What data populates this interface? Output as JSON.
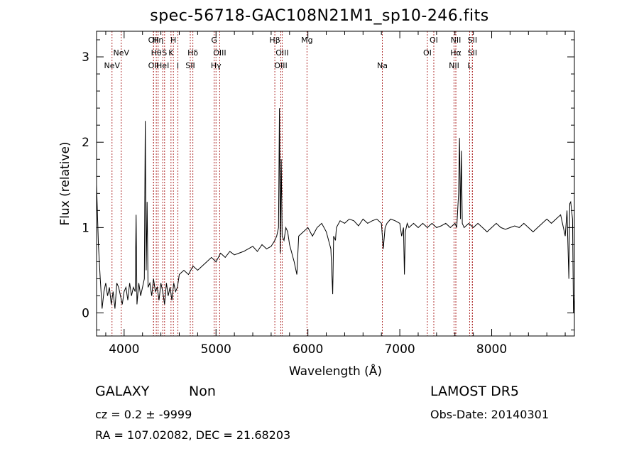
{
  "chart_data": {
    "type": "line",
    "title": "spec-56718-GAC108N21M1_sp10-246.fits",
    "xlabel": "Wavelength (Å)",
    "ylabel": "Flux (relative)",
    "xlim": [
      3700,
      8900
    ],
    "ylim": [
      -0.27,
      3.3
    ],
    "xticks": [
      {
        "value": 4000,
        "label": "4000"
      },
      {
        "value": 5000,
        "label": "5000"
      },
      {
        "value": 6000,
        "label": "6000"
      },
      {
        "value": 7000,
        "label": "7000"
      },
      {
        "value": 8000,
        "label": "8000"
      }
    ],
    "yticks": [
      {
        "value": 0,
        "label": "0"
      },
      {
        "value": 1,
        "label": "1"
      },
      {
        "value": 2,
        "label": "2"
      },
      {
        "value": 3,
        "label": "3"
      }
    ],
    "line_color": "#000000",
    "marker_color": "#b03030",
    "series": [
      {
        "x": [
          3700,
          3720,
          3740,
          3760,
          3780,
          3800,
          3820,
          3840,
          3860,
          3880,
          3900,
          3920,
          3940,
          3960,
          3980,
          4000,
          4020,
          4040,
          4060,
          4080,
          4100,
          4120,
          4130,
          4140,
          4160,
          4180,
          4200,
          4220,
          4230,
          4240,
          4250,
          4260,
          4280,
          4300,
          4320,
          4340,
          4360,
          4380,
          4400,
          4420,
          4440,
          4460,
          4480,
          4500,
          4520,
          4540,
          4560,
          4580,
          4600,
          4650,
          4700,
          4750,
          4800,
          4850,
          4900,
          4950,
          5000,
          5050,
          5100,
          5150,
          5200,
          5250,
          5300,
          5350,
          5400,
          5450,
          5500,
          5550,
          5600,
          5640,
          5660,
          5680,
          5690,
          5700,
          5710,
          5720,
          5740,
          5760,
          5780,
          5800,
          5850,
          5880,
          5900,
          5950,
          6000,
          6050,
          6100,
          6150,
          6200,
          6250,
          6270,
          6280,
          6300,
          6310,
          6350,
          6400,
          6450,
          6500,
          6550,
          6600,
          6650,
          6700,
          6750,
          6800,
          6820,
          6840,
          6860,
          6900,
          6950,
          7000,
          7020,
          7040,
          7050,
          7060,
          7080,
          7100,
          7150,
          7200,
          7250,
          7300,
          7350,
          7400,
          7450,
          7500,
          7550,
          7600,
          7620,
          7640,
          7650,
          7660,
          7670,
          7680,
          7700,
          7750,
          7800,
          7850,
          7900,
          7950,
          8000,
          8050,
          8100,
          8150,
          8200,
          8250,
          8300,
          8350,
          8400,
          8450,
          8500,
          8550,
          8600,
          8650,
          8700,
          8750,
          8780,
          8800,
          8820,
          8840,
          8850,
          8860,
          8870,
          8880,
          8890,
          8900
        ],
        "y": [
          1.5,
          0.8,
          0.4,
          0.05,
          0.25,
          0.35,
          0.2,
          0.3,
          0.1,
          0.25,
          0.05,
          0.35,
          0.3,
          0.2,
          0.1,
          0.25,
          0.3,
          0.15,
          0.35,
          0.2,
          0.3,
          0.25,
          1.15,
          0.1,
          0.35,
          0.2,
          0.3,
          0.4,
          2.25,
          0.5,
          1.3,
          0.3,
          0.35,
          0.2,
          0.4,
          0.25,
          0.3,
          0.15,
          0.35,
          0.25,
          0.1,
          0.35,
          0.2,
          0.3,
          0.15,
          0.35,
          0.25,
          0.3,
          0.45,
          0.5,
          0.45,
          0.55,
          0.5,
          0.55,
          0.6,
          0.65,
          0.6,
          0.7,
          0.65,
          0.72,
          0.68,
          0.7,
          0.72,
          0.75,
          0.78,
          0.72,
          0.8,
          0.75,
          0.78,
          0.85,
          0.9,
          1.0,
          2.4,
          0.7,
          1.8,
          0.9,
          0.85,
          1.0,
          0.95,
          0.8,
          0.6,
          0.45,
          0.9,
          0.95,
          1.0,
          0.9,
          1.0,
          1.05,
          0.95,
          0.75,
          0.22,
          0.9,
          0.85,
          1.0,
          1.08,
          1.05,
          1.1,
          1.08,
          1.02,
          1.1,
          1.05,
          1.08,
          1.1,
          1.05,
          0.75,
          1.0,
          1.05,
          1.1,
          1.08,
          1.05,
          0.9,
          1.0,
          0.45,
          0.95,
          1.05,
          1.0,
          1.05,
          1.0,
          1.05,
          1.0,
          1.05,
          1.0,
          1.02,
          1.05,
          1.0,
          1.05,
          1.0,
          1.4,
          2.05,
          1.1,
          1.9,
          1.05,
          1.0,
          1.05,
          1.0,
          1.05,
          1.0,
          0.95,
          1.0,
          1.05,
          1.0,
          0.98,
          1.0,
          1.02,
          1.0,
          1.05,
          1.0,
          0.95,
          1.0,
          1.05,
          1.1,
          1.05,
          1.1,
          1.15,
          1.0,
          0.9,
          1.2,
          0.4,
          1.28,
          1.3,
          1.2,
          1.1,
          0.0,
          0.2
        ]
      }
    ],
    "line_markers": [
      {
        "x": 3868,
        "label": "NeV",
        "row": 2
      },
      {
        "x": 3969,
        "label": "NeV",
        "row": 1
      },
      {
        "x": 4320,
        "label": "OII",
        "row": 0
      },
      {
        "x": 4320,
        "label": "OII",
        "row": 2
      },
      {
        "x": 4370,
        "label": "Hη",
        "row": 0
      },
      {
        "x": 4350,
        "label": "Hθ",
        "row": 1
      },
      {
        "x": 4440,
        "label": "S",
        "row": 1
      },
      {
        "x": 4420,
        "label": "HeI",
        "row": 2
      },
      {
        "x": 4536,
        "label": "H",
        "row": 0
      },
      {
        "x": 4510,
        "label": "K",
        "row": 1
      },
      {
        "x": 4585,
        "label": "I",
        "row": 2
      },
      {
        "x": 4748,
        "label": "Hδ",
        "row": 1
      },
      {
        "x": 4720,
        "label": "SII",
        "row": 2
      },
      {
        "x": 4980,
        "label": "G",
        "row": 0
      },
      {
        "x": 5040,
        "label": "OIII",
        "row": 1
      },
      {
        "x": 5000,
        "label": "Hγ",
        "row": 2
      },
      {
        "x": 5640,
        "label": "Hβ",
        "row": 0
      },
      {
        "x": 5720,
        "label": "OIII",
        "row": 1
      },
      {
        "x": 5705,
        "label": "OIII",
        "row": 2
      },
      {
        "x": 5990,
        "label": "Mg",
        "row": 0
      },
      {
        "x": 6810,
        "label": "Na",
        "row": 2
      },
      {
        "x": 7370,
        "label": "OI",
        "row": 0
      },
      {
        "x": 7300,
        "label": "OI",
        "row": 1
      },
      {
        "x": 7610,
        "label": "NII",
        "row": 0
      },
      {
        "x": 7610,
        "label": "Hα",
        "row": 1
      },
      {
        "x": 7590,
        "label": "NII",
        "row": 2
      },
      {
        "x": 7790,
        "label": "SII",
        "row": 0
      },
      {
        "x": 7790,
        "label": "SII",
        "row": 1
      },
      {
        "x": 7760,
        "label": "L",
        "row": 2
      }
    ]
  },
  "info": {
    "object_class": "GALAXY",
    "subclass": "Non",
    "survey": "LAMOST  DR5",
    "cz_text": "cz = 0.2 ± -9999",
    "obs_date": "Obs-Date: 20140301",
    "radec": "RA = 107.02082, DEC =  21.68203"
  }
}
